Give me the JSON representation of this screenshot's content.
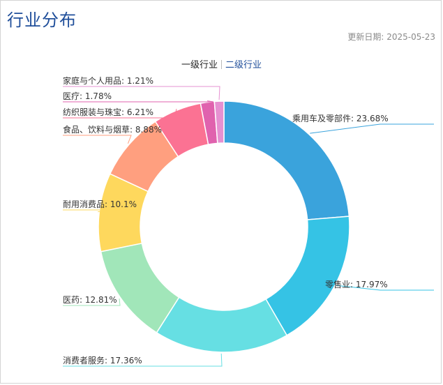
{
  "header": {
    "title": "行业分布",
    "update_date": "更新日期: 2025-05-23"
  },
  "tabs": [
    {
      "label": "一级行业",
      "active": true
    },
    {
      "label": "二级行业",
      "active": false
    }
  ],
  "chart_data": {
    "type": "pie",
    "variant": "donut",
    "start_position": "top, clockwise",
    "slices": [
      {
        "label": "乘用车及零部件",
        "value": 23.68,
        "display": "乘用车及零部件: 23.68%",
        "color": "#3aa3dc"
      },
      {
        "label": "零售业",
        "value": 17.97,
        "display": "零售业: 17.97%",
        "color": "#35c3e5"
      },
      {
        "label": "消费者服务",
        "value": 17.36,
        "display": "消费者服务: 17.36%",
        "color": "#66dfe3"
      },
      {
        "label": "医药",
        "value": 12.81,
        "display": "医药: 12.81%",
        "color": "#a1e6b9"
      },
      {
        "label": "耐用消费品",
        "value": 10.1,
        "display": "耐用消费品: 10.1%",
        "color": "#fed85d"
      },
      {
        "label": "食品、饮料与烟草",
        "value": 8.88,
        "display": "食品、饮料与烟草: 8.88%",
        "color": "#ff9f7f"
      },
      {
        "label": "纺织服装与珠宝",
        "value": 6.21,
        "display": "纺织服装与珠宝: 6.21%",
        "color": "#fb7293"
      },
      {
        "label": "医疗",
        "value": 1.78,
        "display": "医疗: 1.78%",
        "color": "#e062ae"
      },
      {
        "label": "家庭与个人用品",
        "value": 1.21,
        "display": "家庭与个人用品: 1.21%",
        "color": "#e690d1"
      }
    ]
  }
}
